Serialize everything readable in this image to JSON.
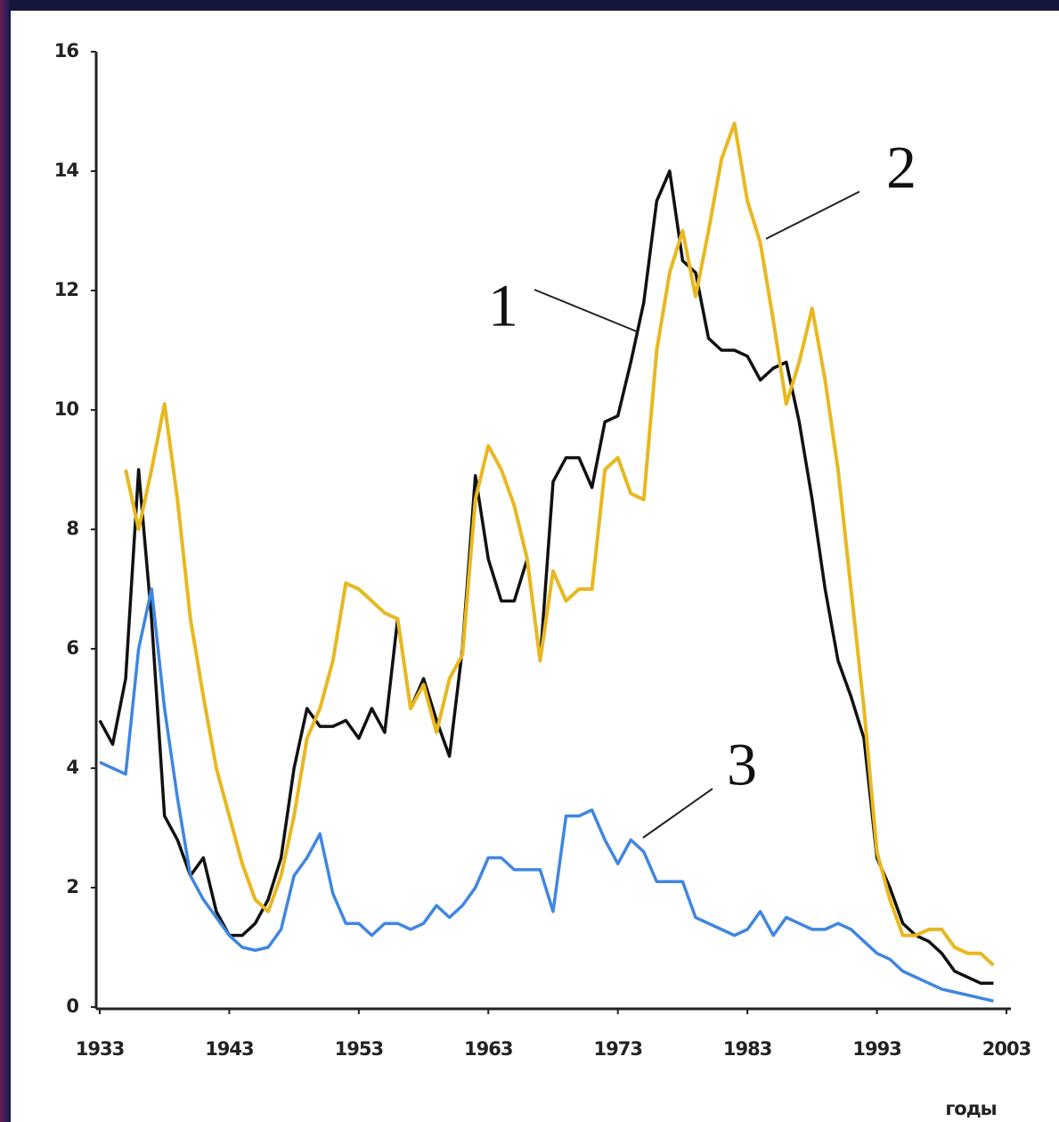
{
  "chart_data": {
    "type": "line",
    "x_label": "годы",
    "x": [
      1933,
      1934,
      1935,
      1936,
      1937,
      1938,
      1939,
      1940,
      1941,
      1942,
      1943,
      1944,
      1945,
      1946,
      1947,
      1948,
      1949,
      1950,
      1951,
      1952,
      1953,
      1954,
      1955,
      1956,
      1957,
      1958,
      1959,
      1960,
      1961,
      1962,
      1963,
      1964,
      1965,
      1966,
      1967,
      1968,
      1969,
      1970,
      1971,
      1972,
      1973,
      1974,
      1975,
      1976,
      1977,
      1978,
      1979,
      1980,
      1981,
      1982,
      1983,
      1984,
      1985,
      1986,
      1987,
      1988,
      1989,
      1990,
      1991,
      1992,
      1993,
      1994,
      1995,
      1996,
      1997,
      1998,
      1999,
      2000,
      2001,
      2002
    ],
    "xlim": [
      1933,
      2003
    ],
    "xticks": [
      1933,
      1943,
      1953,
      1963,
      1973,
      1983,
      1993,
      2003
    ],
    "ylim": [
      0,
      16
    ],
    "yticks": [
      0,
      2,
      4,
      6,
      8,
      10,
      12,
      14,
      16
    ],
    "series": [
      {
        "name": "1",
        "color": "#111111",
        "values": [
          4.8,
          4.4,
          5.5,
          9.0,
          6.5,
          3.2,
          2.8,
          2.2,
          2.5,
          1.6,
          1.2,
          1.2,
          1.4,
          1.8,
          2.5,
          4.0,
          5.0,
          4.7,
          4.7,
          4.8,
          4.5,
          5.0,
          4.6,
          6.5,
          5.0,
          5.5,
          4.8,
          4.2,
          6.0,
          8.9,
          7.5,
          6.8,
          6.8,
          7.5,
          5.8,
          8.8,
          9.2,
          9.2,
          8.7,
          9.8,
          9.9,
          10.8,
          11.8,
          13.5,
          14.0,
          12.5,
          12.3,
          11.2,
          11.0,
          11.0,
          10.9,
          10.5,
          10.7,
          10.8,
          9.8,
          8.5,
          7.0,
          5.8,
          5.2,
          4.5,
          2.5,
          2.0,
          1.4,
          1.2,
          1.1,
          0.9,
          0.6,
          0.5,
          0.4,
          0.4
        ]
      },
      {
        "name": "2",
        "color": "#e8b820",
        "values": [
          null,
          null,
          9.0,
          8.0,
          9.0,
          10.1,
          8.5,
          6.5,
          5.2,
          4.0,
          3.2,
          2.4,
          1.8,
          1.6,
          2.2,
          3.2,
          4.5,
          5.0,
          5.8,
          7.1,
          7.0,
          6.8,
          6.6,
          6.5,
          5.0,
          5.4,
          4.6,
          5.5,
          5.9,
          8.5,
          9.4,
          9.0,
          8.4,
          7.5,
          5.8,
          7.3,
          6.8,
          7.0,
          7.0,
          9.0,
          9.2,
          8.6,
          8.5,
          11.0,
          12.3,
          13.0,
          11.9,
          13.0,
          14.2,
          14.8,
          13.5,
          12.8,
          11.5,
          10.1,
          10.8,
          11.7,
          10.5,
          9.0,
          7.0,
          5.0,
          2.6,
          1.8,
          1.2,
          1.2,
          1.3,
          1.3,
          1.0,
          0.9,
          0.9,
          0.7
        ]
      },
      {
        "name": "3",
        "color": "#3f86e0",
        "values": [
          4.1,
          4.0,
          3.9,
          6.0,
          7.0,
          5.0,
          3.5,
          2.2,
          1.8,
          1.5,
          1.2,
          1.0,
          0.95,
          1.0,
          1.3,
          2.2,
          2.5,
          2.9,
          1.9,
          1.4,
          1.4,
          1.2,
          1.4,
          1.4,
          1.3,
          1.4,
          1.7,
          1.5,
          1.7,
          2.0,
          2.5,
          2.5,
          2.3,
          2.3,
          2.3,
          1.6,
          3.2,
          3.2,
          3.3,
          2.8,
          2.4,
          2.8,
          2.6,
          2.1,
          2.1,
          2.1,
          1.5,
          1.4,
          1.3,
          1.2,
          1.3,
          1.6,
          1.2,
          1.5,
          1.4,
          1.3,
          1.3,
          1.4,
          1.3,
          1.1,
          0.9,
          0.8,
          0.6,
          0.5,
          0.4,
          0.3,
          0.25,
          0.2,
          0.15,
          0.1
        ]
      }
    ]
  }
}
